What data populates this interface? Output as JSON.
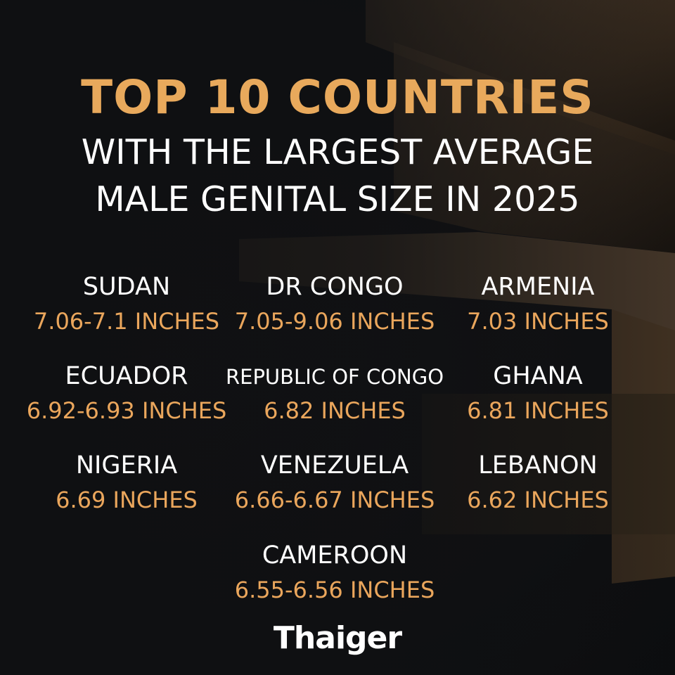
{
  "header": {
    "title": "TOP 10 COUNTRIES",
    "subtitle_lines": [
      "WITH THE LARGEST AVERAGE",
      "MALE GENITAL SIZE IN 2025"
    ]
  },
  "items": [
    {
      "country": "SUDAN",
      "size": "7.06-7.1 INCHES"
    },
    {
      "country": "DR CONGO",
      "size": "7.05-9.06 INCHES"
    },
    {
      "country": "ARMENIA",
      "size": "7.03 INCHES"
    },
    {
      "country": "ECUADOR",
      "size": "6.92-6.93 INCHES"
    },
    {
      "country": "REPUBLIC OF CONGO",
      "size": "6.82 INCHES"
    },
    {
      "country": "GHANA",
      "size": "6.81 INCHES"
    },
    {
      "country": "NIGERIA",
      "size": "6.69 INCHES"
    },
    {
      "country": "VENEZUELA",
      "size": "6.66-6.67 INCHES"
    },
    {
      "country": "LEBANON",
      "size": "6.62 INCHES"
    },
    {
      "country": "CAMEROON",
      "size": "6.55-6.56 INCHES"
    }
  ],
  "brand": "Thaiger"
}
